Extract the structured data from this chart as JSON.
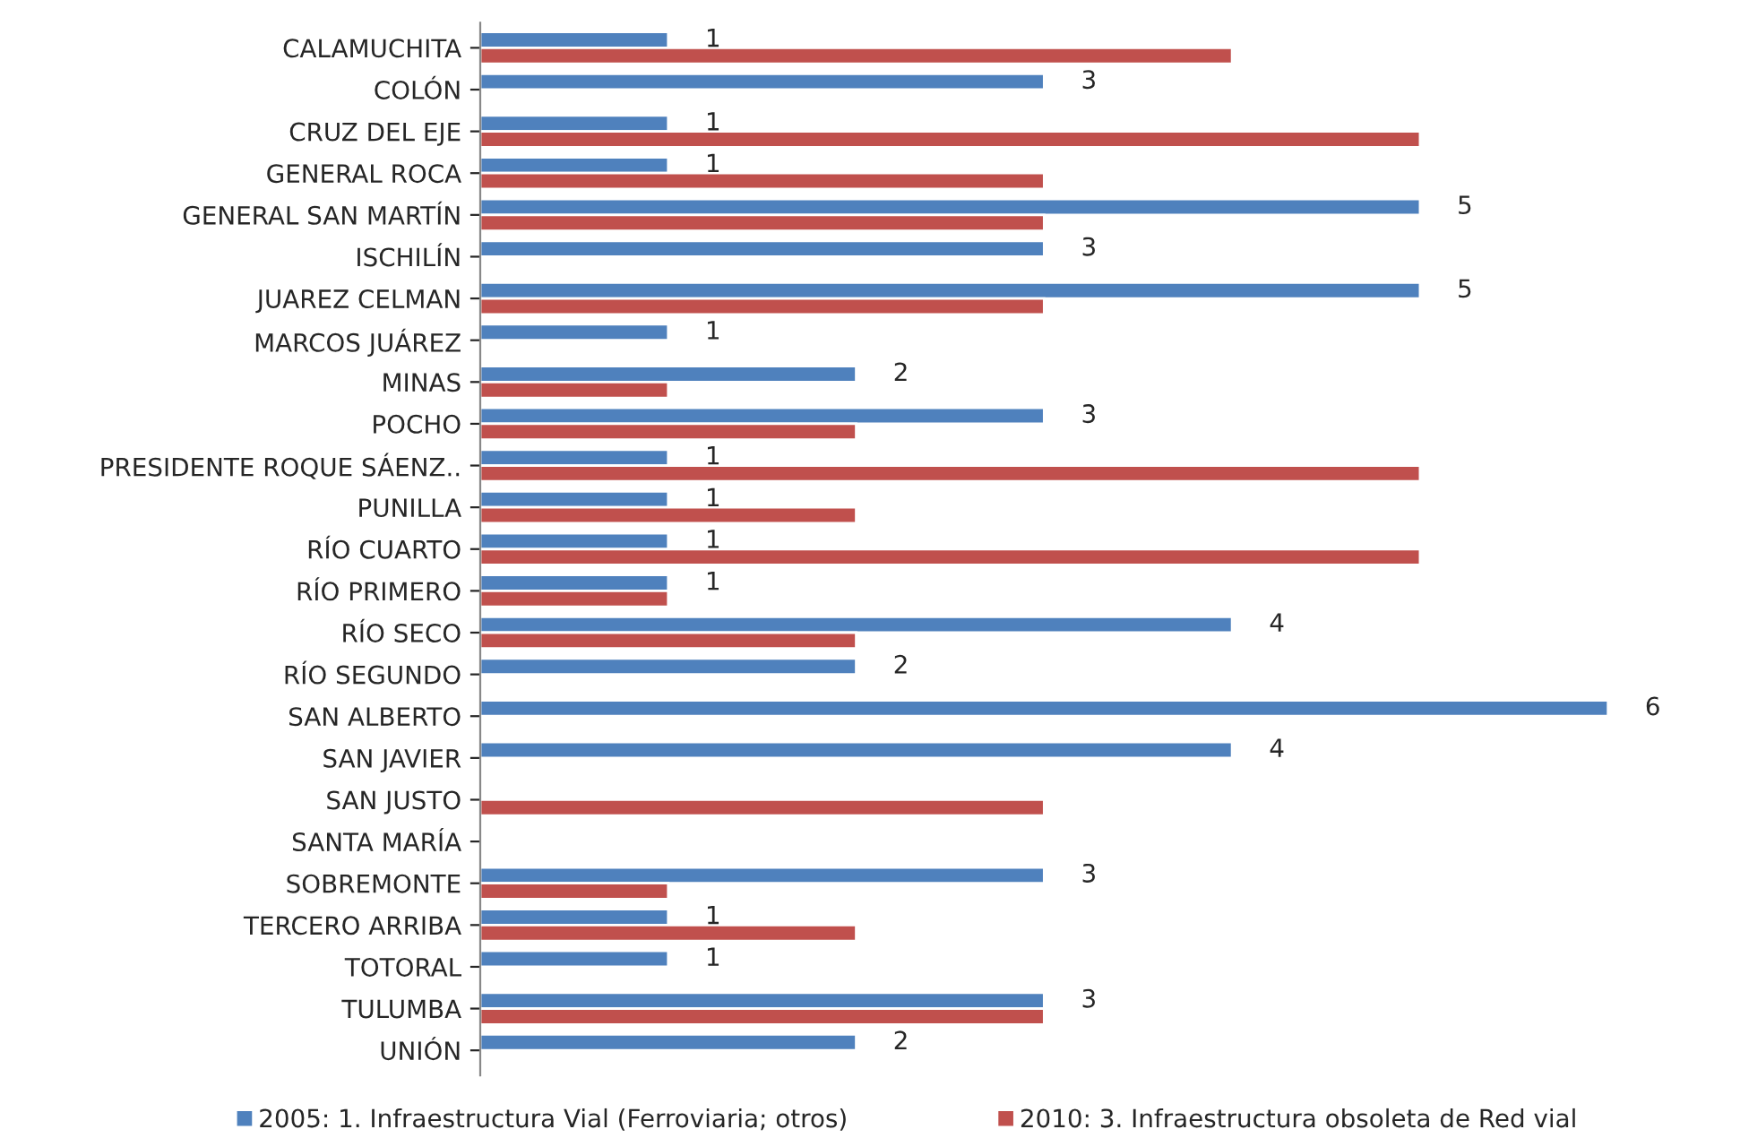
{
  "chart_data": {
    "type": "bar",
    "orientation": "horizontal",
    "legend": "bottom",
    "grid": false,
    "tick_labels": "y",
    "categories": [
      "CALAMUCHITA",
      "COLÓN",
      "CRUZ DEL EJE",
      "GENERAL ROCA",
      "GENERAL SAN MARTÍN",
      "ISCHILÍN",
      "JUAREZ CELMAN",
      "MARCOS JUÁREZ",
      "MINAS",
      "POCHO",
      "PRESIDENTE ROQUE SÁENZ..",
      "PUNILLA",
      "RÍO CUARTO",
      "RÍO PRIMERO",
      "RÍO SECO",
      "RÍO SEGUNDO",
      "SAN ALBERTO",
      "SAN JAVIER",
      "SAN JUSTO",
      "SANTA MARÍA",
      "SOBREMONTE",
      "TERCERO ARRIBA",
      "TOTORAL",
      "TULUMBA",
      "UNIÓN"
    ],
    "series": [
      {
        "name": "2005: 1. Infraestructura Vial (Ferroviaria; otros)",
        "color": "#4f81bd",
        "values": [
          1,
          3,
          1,
          1,
          5,
          3,
          5,
          1,
          2,
          3,
          1,
          1,
          1,
          1,
          4,
          2,
          6,
          4,
          null,
          null,
          3,
          1,
          1,
          3,
          2
        ],
        "value_labels": [
          "1",
          "3",
          "1",
          "1",
          "5",
          "3",
          "5",
          "1",
          "2",
          "3",
          "1",
          "1",
          "1",
          "1",
          "4",
          "2",
          "6",
          "4",
          null,
          null,
          "3",
          "1",
          "1",
          "3",
          "2"
        ]
      },
      {
        "name": "2010: 3. Infraestructura obsoleta de Red vial",
        "color": "#c0504d",
        "values": [
          4,
          null,
          5,
          3,
          3,
          null,
          3,
          null,
          1,
          2,
          5,
          2,
          5,
          1,
          2,
          null,
          null,
          null,
          3,
          null,
          1,
          2,
          null,
          3,
          null
        ]
      }
    ]
  }
}
